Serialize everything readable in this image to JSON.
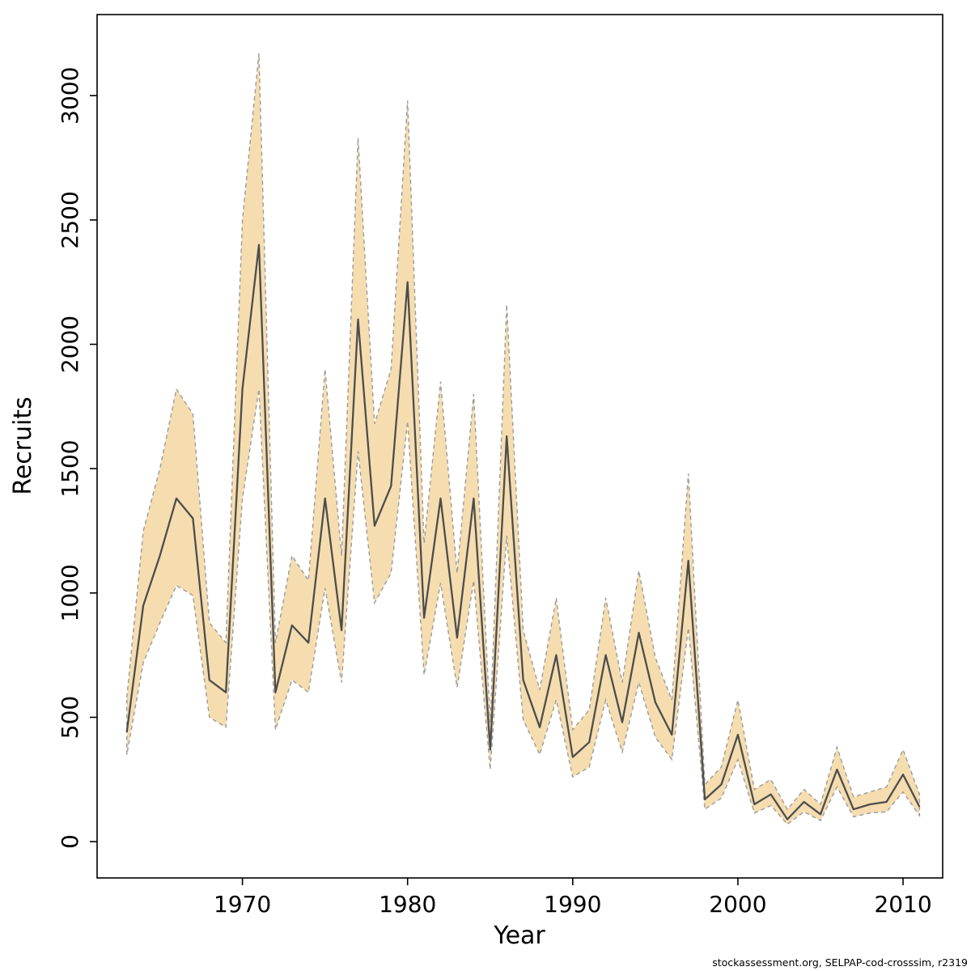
{
  "watermark": "stockassessment.org, SELPAP-cod-crosssim, r2319",
  "chart_data": {
    "type": "line",
    "title": "",
    "xlabel": "Year",
    "ylabel": "Recruits",
    "legend": "none",
    "grid": false,
    "x": [
      1963,
      1964,
      1965,
      1966,
      1967,
      1968,
      1969,
      1970,
      1971,
      1972,
      1973,
      1974,
      1975,
      1976,
      1977,
      1978,
      1979,
      1980,
      1981,
      1982,
      1983,
      1984,
      1985,
      1986,
      1987,
      1988,
      1989,
      1990,
      1991,
      1992,
      1993,
      1994,
      1995,
      1996,
      1997,
      1998,
      1999,
      2000,
      2001,
      2002,
      2003,
      2004,
      2005,
      2006,
      2007,
      2008,
      2009,
      2010,
      2011
    ],
    "series": [
      {
        "name": "estimate",
        "values": [
          440,
          950,
          1150,
          1380,
          1300,
          650,
          600,
          1820,
          2400,
          600,
          870,
          800,
          1380,
          850,
          2100,
          1270,
          1430,
          2250,
          900,
          1380,
          820,
          1380,
          370,
          1630,
          650,
          460,
          750,
          340,
          400,
          750,
          480,
          840,
          560,
          430,
          1130,
          170,
          230,
          430,
          150,
          190,
          90,
          160,
          110,
          290,
          130,
          150,
          160,
          270,
          140
        ]
      },
      {
        "name": "upper-confidence",
        "values": [
          580,
          1250,
          1500,
          1820,
          1720,
          880,
          800,
          2500,
          3170,
          800,
          1150,
          1050,
          1900,
          1150,
          2830,
          1680,
          1900,
          2980,
          1200,
          1850,
          1080,
          1800,
          480,
          2160,
          850,
          610,
          980,
          450,
          530,
          980,
          640,
          1090,
          740,
          570,
          1480,
          230,
          300,
          570,
          210,
          250,
          130,
          210,
          150,
          380,
          180,
          200,
          220,
          370,
          190
        ]
      },
      {
        "name": "lower-confidence",
        "values": [
          350,
          720,
          880,
          1030,
          990,
          500,
          460,
          1380,
          1820,
          450,
          650,
          600,
          1020,
          640,
          1570,
          960,
          1080,
          1690,
          670,
          1040,
          620,
          1050,
          290,
          1230,
          490,
          350,
          570,
          260,
          300,
          570,
          360,
          640,
          420,
          330,
          860,
          130,
          175,
          330,
          115,
          145,
          70,
          120,
          85,
          220,
          100,
          115,
          120,
          200,
          105
        ]
      }
    ],
    "xticks": [
      1970,
      1980,
      1990,
      2000,
      2010
    ],
    "yticks": [
      0,
      500,
      1000,
      1500,
      2000,
      2500,
      3000
    ],
    "xlim": [
      1961.2,
      2012.4
    ],
    "ylim": [
      -146,
      3326
    ],
    "band_fill": "#f5ddb0",
    "band_stroke": "#9b9b9b",
    "line_color": "#4d4d4d",
    "box_color": "#000000"
  }
}
